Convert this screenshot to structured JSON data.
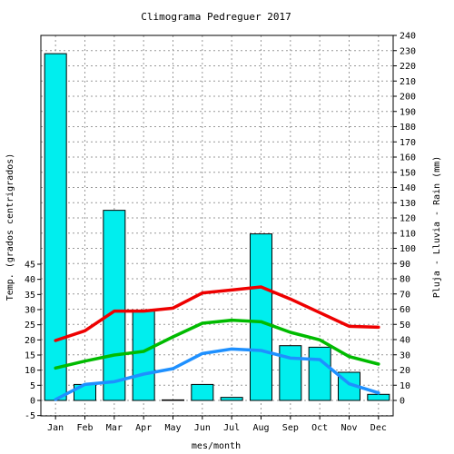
{
  "chart_data": {
    "type": "bar+line",
    "title": "Climograma Pedreguer 2017",
    "xlabel": "mes/month",
    "ylabel_left": "Temp. (grados centrigrados)",
    "ylabel_right": "Pluja - Lluvia - Rain (mm)",
    "categories": [
      "Jan",
      "Feb",
      "Mar",
      "Apr",
      "May",
      "Jun",
      "Jul",
      "Aug",
      "Sep",
      "Oct",
      "Nov",
      "Dec"
    ],
    "left_axis": {
      "min": -5,
      "max": 45,
      "ticks": [
        -5,
        0,
        5,
        10,
        15,
        20,
        25,
        30,
        35,
        40,
        45
      ]
    },
    "right_axis": {
      "min": 0,
      "max": 240,
      "ticks": [
        0,
        10,
        20,
        30,
        40,
        50,
        60,
        70,
        80,
        90,
        100,
        110,
        120,
        130,
        140,
        150,
        160,
        170,
        180,
        190,
        200,
        210,
        220,
        230,
        240
      ]
    },
    "grid": true,
    "bars": {
      "axis": "right",
      "color": "#00eeee",
      "values": [
        228,
        10.5,
        125,
        59,
        0.3,
        10.5,
        2,
        109.5,
        36,
        35,
        18.5,
        4
      ]
    },
    "series": [
      {
        "axis": "left",
        "color": "#ee0000",
        "values": [
          19.8,
          23.0,
          29.5,
          29.5,
          30.5,
          35.5,
          36.5,
          37.5,
          33.5,
          29.0,
          24.5,
          24.2
        ]
      },
      {
        "axis": "left",
        "color": "#00bb00",
        "values": [
          10.7,
          13.0,
          15.0,
          16.2,
          21.0,
          25.5,
          26.5,
          26.0,
          22.5,
          20.0,
          14.5,
          12.0
        ]
      },
      {
        "axis": "left",
        "color": "#1e90ff",
        "values": [
          0.3,
          5.3,
          6.2,
          8.7,
          10.5,
          15.5,
          17.0,
          16.5,
          14.0,
          13.5,
          5.5,
          2.5
        ]
      }
    ]
  }
}
